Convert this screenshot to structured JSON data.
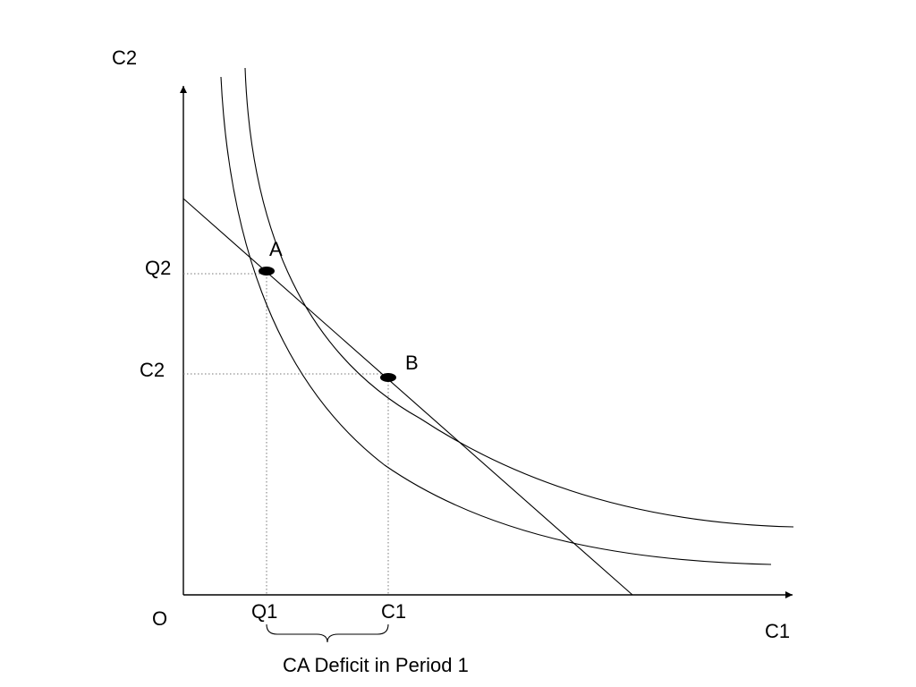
{
  "diagram": {
    "y_axis_label": "C2",
    "x_axis_label": "C1",
    "origin_label": "O",
    "tick_labels": {
      "q2": "Q2",
      "c2": "C2",
      "q1": "Q1",
      "c1": "C1"
    },
    "points": {
      "a": "A",
      "b": "B"
    },
    "brace_label": "CA Deficit in Period 1"
  }
}
